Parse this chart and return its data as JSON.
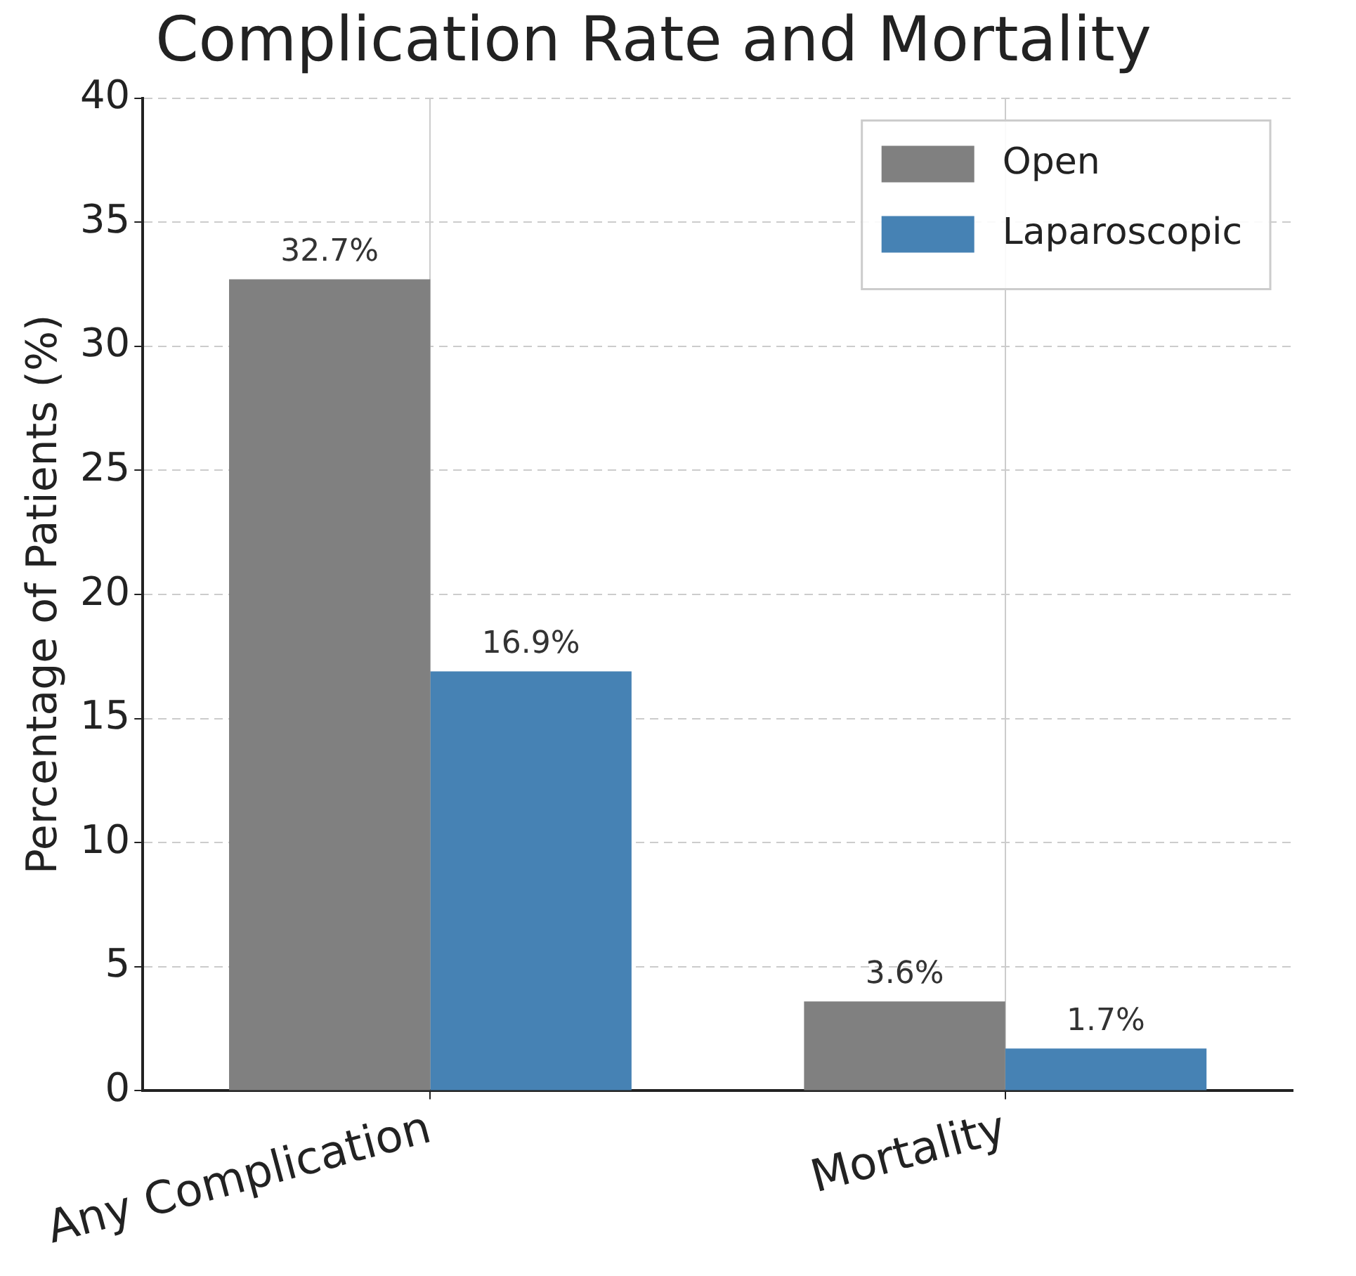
{
  "chart_data": {
    "type": "bar",
    "title": "Complication Rate and Mortality",
    "ylabel": "Percentage of Patients (%)",
    "categories": [
      "Any Complication",
      "Mortality"
    ],
    "series": [
      {
        "name": "Open",
        "color": "#808080",
        "values": [
          32.7,
          3.6
        ],
        "value_labels": [
          "32.7%",
          "3.6%"
        ]
      },
      {
        "name": "Laparoscopic",
        "color": "#4682b4",
        "values": [
          16.9,
          1.7
        ],
        "value_labels": [
          "16.9%",
          "1.7%"
        ]
      }
    ],
    "ylim": [
      0,
      40
    ],
    "yticks": [
      0,
      5,
      10,
      15,
      20,
      25,
      30,
      35,
      40
    ],
    "grid": true,
    "legend": "top right"
  }
}
